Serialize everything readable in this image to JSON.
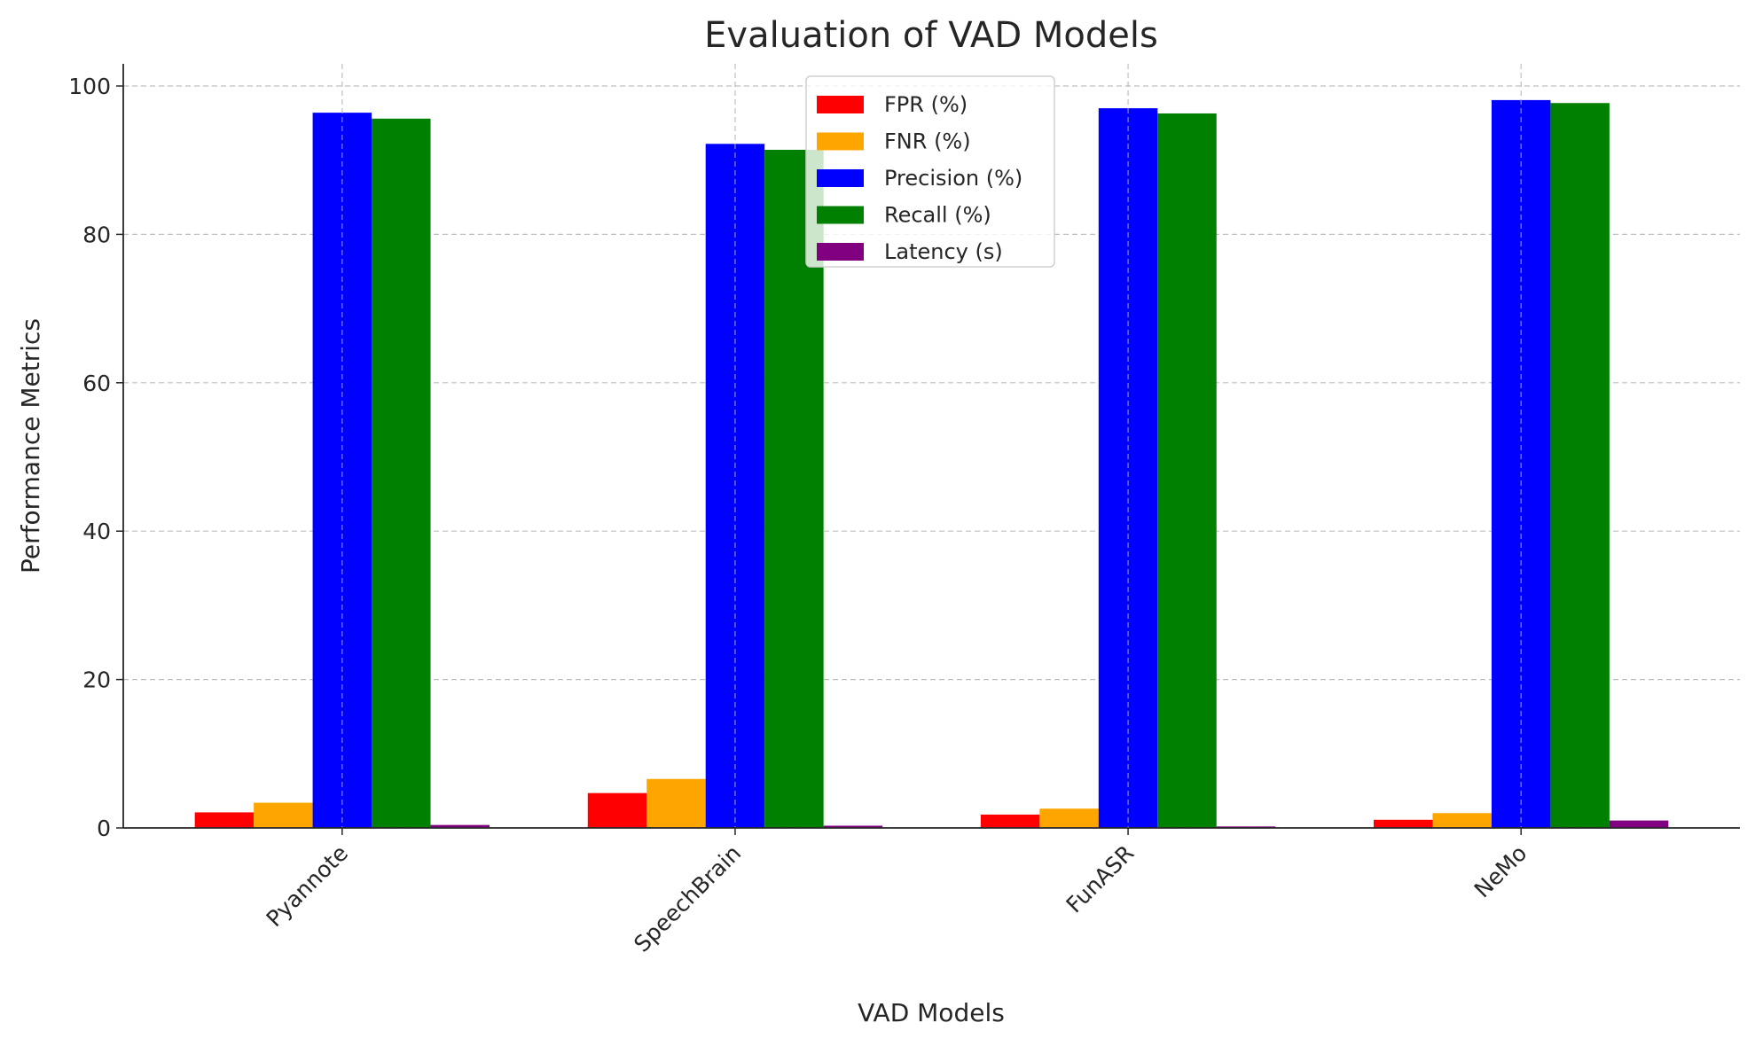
{
  "chart_data": {
    "type": "bar",
    "title": "Evaluation of VAD Models",
    "xlabel": "VAD Models",
    "ylabel": "Performance Metrics",
    "categories": [
      "Pyannote",
      "SpeechBrain",
      "FunASR",
      "NeMo"
    ],
    "series": [
      {
        "name": "FPR (%)",
        "color": "#ff0000",
        "values": [
          2.1,
          4.7,
          1.8,
          1.1
        ]
      },
      {
        "name": "FNR (%)",
        "color": "#ffa500",
        "values": [
          3.4,
          6.6,
          2.6,
          2.0
        ]
      },
      {
        "name": "Precision (%)",
        "color": "#0000ff",
        "values": [
          96.4,
          92.2,
          97.0,
          98.1
        ]
      },
      {
        "name": "Recall (%)",
        "color": "#008000",
        "values": [
          95.6,
          91.4,
          96.3,
          97.7
        ]
      },
      {
        "name": "Latency (s)",
        "color": "#800080",
        "values": [
          0.4,
          0.3,
          0.2,
          1.0
        ]
      }
    ],
    "ylim": [
      0,
      103
    ],
    "yticks": [
      0,
      20,
      40,
      60,
      80,
      100
    ],
    "grid": true,
    "legend": "top-center"
  }
}
